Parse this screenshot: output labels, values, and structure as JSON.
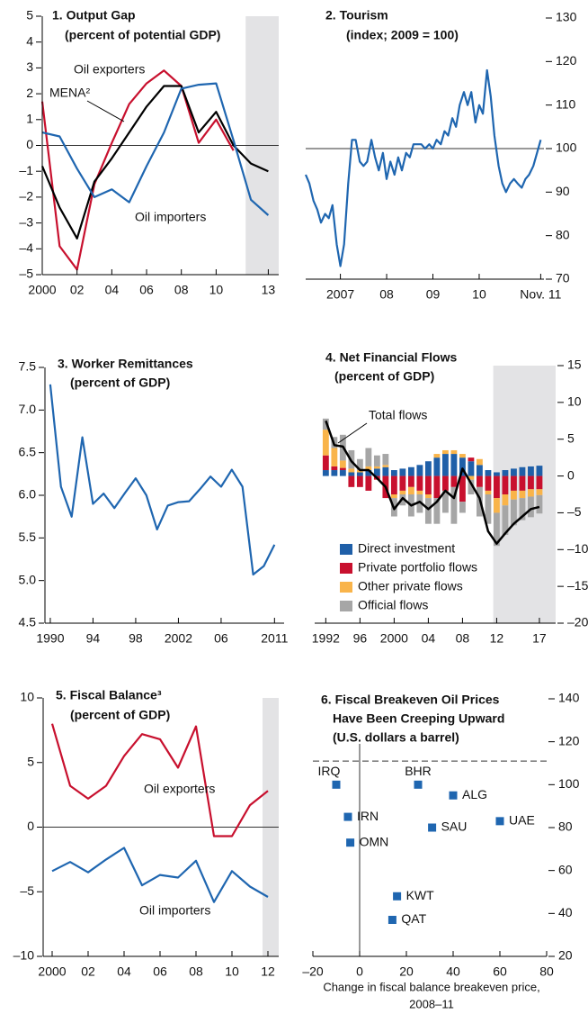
{
  "chart_data": [
    {
      "type": "line",
      "title": "1. Output Gap",
      "subtitle": "(percent of potential GDP)",
      "x": [
        2000,
        2001,
        2002,
        2003,
        2004,
        2005,
        2006,
        2007,
        2008,
        2009,
        2010,
        2011,
        2012,
        2013
      ],
      "series": [
        {
          "name": "Oil exporters",
          "color": "#c8102e",
          "values": [
            1.7,
            -3.9,
            -4.8,
            -1.5,
            0.1,
            1.6,
            2.4,
            2.9,
            2.3,
            0.1,
            1.0,
            -0.2,
            null,
            null
          ]
        },
        {
          "name": "MENA²",
          "color": "#000000",
          "values": [
            -0.8,
            -2.4,
            -3.6,
            -1.4,
            -0.5,
            0.5,
            1.5,
            2.3,
            2.3,
            0.5,
            1.3,
            0.0,
            -0.7,
            -1.0
          ]
        },
        {
          "name": "Oil importers",
          "color": "#1f66b0",
          "values": [
            0.5,
            0.35,
            -0.9,
            -2.0,
            -1.7,
            -2.2,
            -0.8,
            0.5,
            2.2,
            2.35,
            2.4,
            0.2,
            -2.1,
            -2.7
          ]
        }
      ],
      "xlim": [
        2000,
        2013.6
      ],
      "xticks": [
        2000,
        {
          "value": 2002,
          "label": "02"
        },
        {
          "value": 2004,
          "label": "04"
        },
        {
          "value": 2006,
          "label": "06"
        },
        {
          "value": 2008,
          "label": "08"
        },
        {
          "value": 2010,
          "label": "10"
        },
        {
          "value": 2013,
          "label": "13"
        }
      ],
      "ylim": [
        -5,
        5
      ],
      "yticks": [
        {
          "value": -5,
          "label": "–5"
        },
        {
          "value": -4,
          "label": "–4"
        },
        {
          "value": -3,
          "label": "–3"
        },
        {
          "value": -2,
          "label": "–2"
        },
        {
          "value": -1,
          "label": "–1"
        },
        0,
        1,
        2,
        3,
        4,
        5
      ],
      "yaxis": "left",
      "hline": 0,
      "shade": [
        2011.7,
        2013.6
      ]
    },
    {
      "type": "line",
      "title": "2. Tourism",
      "subtitle": "(index; 2009 = 100)",
      "x": [
        2006.75,
        2006.83,
        2006.92,
        2007.0,
        2007.08,
        2007.17,
        2007.25,
        2007.33,
        2007.42,
        2007.5,
        2007.58,
        2007.67,
        2007.75,
        2007.83,
        2007.92,
        2008.0,
        2008.08,
        2008.17,
        2008.25,
        2008.33,
        2008.42,
        2008.5,
        2008.58,
        2008.67,
        2008.75,
        2008.83,
        2008.92,
        2009.0,
        2009.08,
        2009.17,
        2009.25,
        2009.33,
        2009.42,
        2009.5,
        2009.58,
        2009.67,
        2009.75,
        2009.83,
        2009.92,
        2010.0,
        2010.08,
        2010.17,
        2010.25,
        2010.33,
        2010.42,
        2010.5,
        2010.58,
        2010.67,
        2010.75,
        2010.83,
        2010.92,
        2011.0,
        2011.08,
        2011.17,
        2011.25,
        2011.33,
        2011.42,
        2011.5,
        2011.58,
        2011.67,
        2011.75,
        2011.83
      ],
      "series": [
        {
          "name": "Tourism",
          "color": "#1f66b0",
          "values": [
            94,
            92,
            88,
            86,
            83,
            85,
            84,
            87,
            78,
            73,
            78,
            92,
            102,
            102,
            97,
            96,
            97,
            102,
            98,
            95,
            99,
            93,
            97,
            94,
            98,
            95,
            99,
            98,
            101,
            101,
            101,
            100,
            101,
            100,
            102,
            101,
            104,
            103,
            107,
            105,
            110,
            113,
            110,
            113,
            106,
            110,
            108,
            118,
            112,
            103,
            96,
            92,
            90,
            92,
            93,
            92,
            91,
            93,
            94,
            96,
            99,
            102
          ]
        }
      ],
      "xlim": [
        2006.75,
        2011.9
      ],
      "xticks": [
        {
          "value": 2007.5,
          "label": "2007"
        },
        {
          "value": 2008.5,
          "label": "08"
        },
        {
          "value": 2009.5,
          "label": "09"
        },
        {
          "value": 2010.5,
          "label": "10"
        },
        {
          "value": 2011.83,
          "label": "Nov. 11"
        }
      ],
      "ylim": [
        70,
        130
      ],
      "yticks": [
        70,
        80,
        90,
        100,
        110,
        120,
        130
      ],
      "yaxis": "right",
      "hline": 100
    },
    {
      "type": "line",
      "title": "3. Worker Remittances",
      "subtitle": "(percent of GDP)",
      "x": [
        1990,
        1991,
        1992,
        1993,
        1994,
        1995,
        1996,
        1997,
        1998,
        1999,
        2000,
        2001,
        2002,
        2003,
        2004,
        2005,
        2006,
        2007,
        2008,
        2009,
        2010,
        2011
      ],
      "series": [
        {
          "name": "Worker remittances",
          "color": "#1f66b0",
          "values": [
            7.3,
            6.1,
            5.75,
            6.68,
            5.9,
            6.02,
            5.85,
            6.03,
            6.2,
            6.0,
            5.6,
            5.88,
            5.92,
            5.93,
            6.07,
            6.22,
            6.1,
            6.3,
            6.1,
            5.07,
            5.17,
            5.42
          ]
        }
      ],
      "xlim": [
        1989.5,
        2011.9
      ],
      "xticks": [
        1990,
        {
          "value": 1994,
          "label": "94"
        },
        {
          "value": 1998,
          "label": "98"
        },
        2002,
        {
          "value": 2006,
          "label": "06"
        },
        2011
      ],
      "ylim": [
        4.5,
        7.5
      ],
      "yticks": [
        4.5,
        {
          "value": 5,
          "label": "5.0"
        },
        5.5,
        {
          "value": 6,
          "label": "6.0"
        },
        6.5,
        {
          "value": 7,
          "label": "7.0"
        },
        7.5
      ],
      "yaxis": "left"
    },
    {
      "type": "bar",
      "title": "4. Net Financial Flows",
      "subtitle": "(percent of GDP)",
      "x": [
        1992,
        1993,
        1994,
        1995,
        1996,
        1997,
        1998,
        1999,
        2000,
        2001,
        2002,
        2003,
        2004,
        2005,
        2006,
        2007,
        2008,
        2009,
        2010,
        2011,
        2012,
        2013,
        2014,
        2015,
        2016,
        2017
      ],
      "series": [
        {
          "name": "Direct investment",
          "color": "#1f5fa8",
          "values": [
            0.8,
            0.8,
            0.8,
            0.5,
            0.5,
            0.8,
            1.0,
            1.2,
            0.8,
            1.0,
            1.2,
            1.5,
            2.0,
            2.5,
            3.0,
            3.0,
            2.5,
            2.0,
            1.5,
            0.8,
            0.5,
            0.8,
            1.0,
            1.2,
            1.3,
            1.4
          ]
        },
        {
          "name": "Private portfolio flows",
          "color": "#c8102e",
          "values": [
            2.0,
            0.5,
            0.3,
            -1.5,
            -1.5,
            -2.0,
            -0.5,
            -3.0,
            -2.5,
            -2.0,
            -1.5,
            -2.0,
            -2.5,
            -3.0,
            -2.0,
            -1.5,
            -3.5,
            0.5,
            -1.5,
            -2.0,
            -3.0,
            -2.5,
            -2.0,
            -2.0,
            -1.8,
            -1.8
          ]
        },
        {
          "name": "Other private flows",
          "color": "#f9b44a",
          "values": [
            3.5,
            2.5,
            1.0,
            0.5,
            0.3,
            0.5,
            0.3,
            0.3,
            -0.5,
            -0.5,
            -1.0,
            -0.5,
            -0.5,
            0.5,
            0.5,
            0.5,
            0.5,
            -0.5,
            0.8,
            -0.5,
            -2.0,
            -1.5,
            -1.2,
            -1.0,
            -1.0,
            -0.8
          ]
        },
        {
          "name": "Official flows",
          "color": "#a6a6a6",
          "values": [
            1.5,
            1.5,
            3.5,
            2.5,
            1.5,
            2.5,
            1.5,
            1.5,
            -2.5,
            -1.5,
            -3.0,
            -2.5,
            -3.5,
            -3.5,
            -3.0,
            -5.0,
            -1.5,
            -2.0,
            -4.0,
            -4.0,
            -4.5,
            -4.0,
            -3.5,
            -3.0,
            -2.8,
            -2.5
          ]
        },
        {
          "name": "Total flows",
          "type": "line",
          "color": "#000000",
          "values": [
            7.5,
            4.2,
            4.0,
            2.0,
            0.8,
            0.8,
            -0.3,
            -1.5,
            -4.5,
            -3.0,
            -4.0,
            -3.5,
            -4.5,
            -3.5,
            -2.0,
            -3.0,
            1.0,
            -1.0,
            -3.0,
            -7.5,
            -9.2,
            -7.8,
            -6.5,
            -5.5,
            -4.5,
            -4.2
          ]
        }
      ],
      "xlim": [
        1990.7,
        2018.9
      ],
      "xticks": [
        1992,
        {
          "value": 1996,
          "label": "96"
        },
        2000,
        {
          "value": 2004,
          "label": "04"
        },
        {
          "value": 2008,
          "label": "08"
        },
        {
          "value": 2012,
          "label": "12"
        },
        {
          "value": 2017,
          "label": "17"
        }
      ],
      "ylim": [
        -20,
        15
      ],
      "yticks": [
        {
          "value": -20,
          "label": "–20"
        },
        {
          "value": -15,
          "label": "–15"
        },
        {
          "value": -10,
          "label": "–10"
        },
        {
          "value": -5,
          "label": "–5"
        },
        0,
        5,
        10,
        15
      ],
      "yaxis": "right",
      "legend": "lower left",
      "shade": [
        2011.6,
        2018.9
      ]
    },
    {
      "type": "line",
      "title": "5. Fiscal Balance³",
      "subtitle": "(percent of GDP)",
      "x": [
        2000,
        2001,
        2002,
        2003,
        2004,
        2005,
        2006,
        2007,
        2008,
        2009,
        2010,
        2011,
        2012
      ],
      "series": [
        {
          "name": "Oil exporters",
          "color": "#c8102e",
          "values": [
            8.0,
            3.2,
            2.2,
            3.2,
            5.5,
            7.2,
            6.8,
            4.6,
            7.8,
            -0.7,
            -0.7,
            1.7,
            2.8
          ]
        },
        {
          "name": "Oil importers",
          "color": "#1f66b0",
          "values": [
            -3.4,
            -2.7,
            -3.5,
            -2.5,
            -1.6,
            -4.5,
            -3.7,
            -3.9,
            -2.6,
            -5.8,
            -3.4,
            -4.6,
            -5.4
          ]
        }
      ],
      "xlim": [
        1999.5,
        2012.6
      ],
      "xticks": [
        2000,
        {
          "value": 2002,
          "label": "02"
        },
        {
          "value": 2004,
          "label": "04"
        },
        {
          "value": 2006,
          "label": "06"
        },
        {
          "value": 2008,
          "label": "08"
        },
        {
          "value": 2010,
          "label": "10"
        },
        {
          "value": 2012,
          "label": "12"
        }
      ],
      "ylim": [
        -10,
        10
      ],
      "yticks": [
        {
          "value": -10,
          "label": "–10"
        },
        {
          "value": -5,
          "label": "–5"
        },
        0,
        5,
        10
      ],
      "yaxis": "left",
      "hline": 0,
      "shade": [
        2011.7,
        2012.6
      ]
    },
    {
      "type": "scatter",
      "title": [
        "6. Fiscal Breakeven Oil Prices",
        "Have Been Creeping Upward"
      ],
      "subtitle": "(U.S. dollars a barrel)",
      "labels": [
        "IRQ",
        "BHR",
        "ALG",
        "UAE",
        "IRN",
        "SAU",
        "OMN",
        "KWT",
        "QAT"
      ],
      "x": [
        -10,
        25,
        40,
        60,
        -5,
        31,
        -4,
        16,
        14
      ],
      "values": [
        100,
        100,
        95,
        83,
        85,
        80,
        73,
        48,
        37
      ],
      "color": "#1f66b0",
      "xlabel": [
        "Change in fiscal balance breakeven price,",
        "2008–11"
      ],
      "xlim": [
        -20,
        80
      ],
      "xticks": [
        {
          "value": -20,
          "label": "–20"
        },
        0,
        20,
        40,
        60,
        80
      ],
      "ylim": [
        20,
        140
      ],
      "yticks": [
        20,
        40,
        60,
        80,
        100,
        120,
        140
      ],
      "yaxis": "right",
      "hline": 111,
      "hline_style": "dashed",
      "vline": 0
    }
  ]
}
